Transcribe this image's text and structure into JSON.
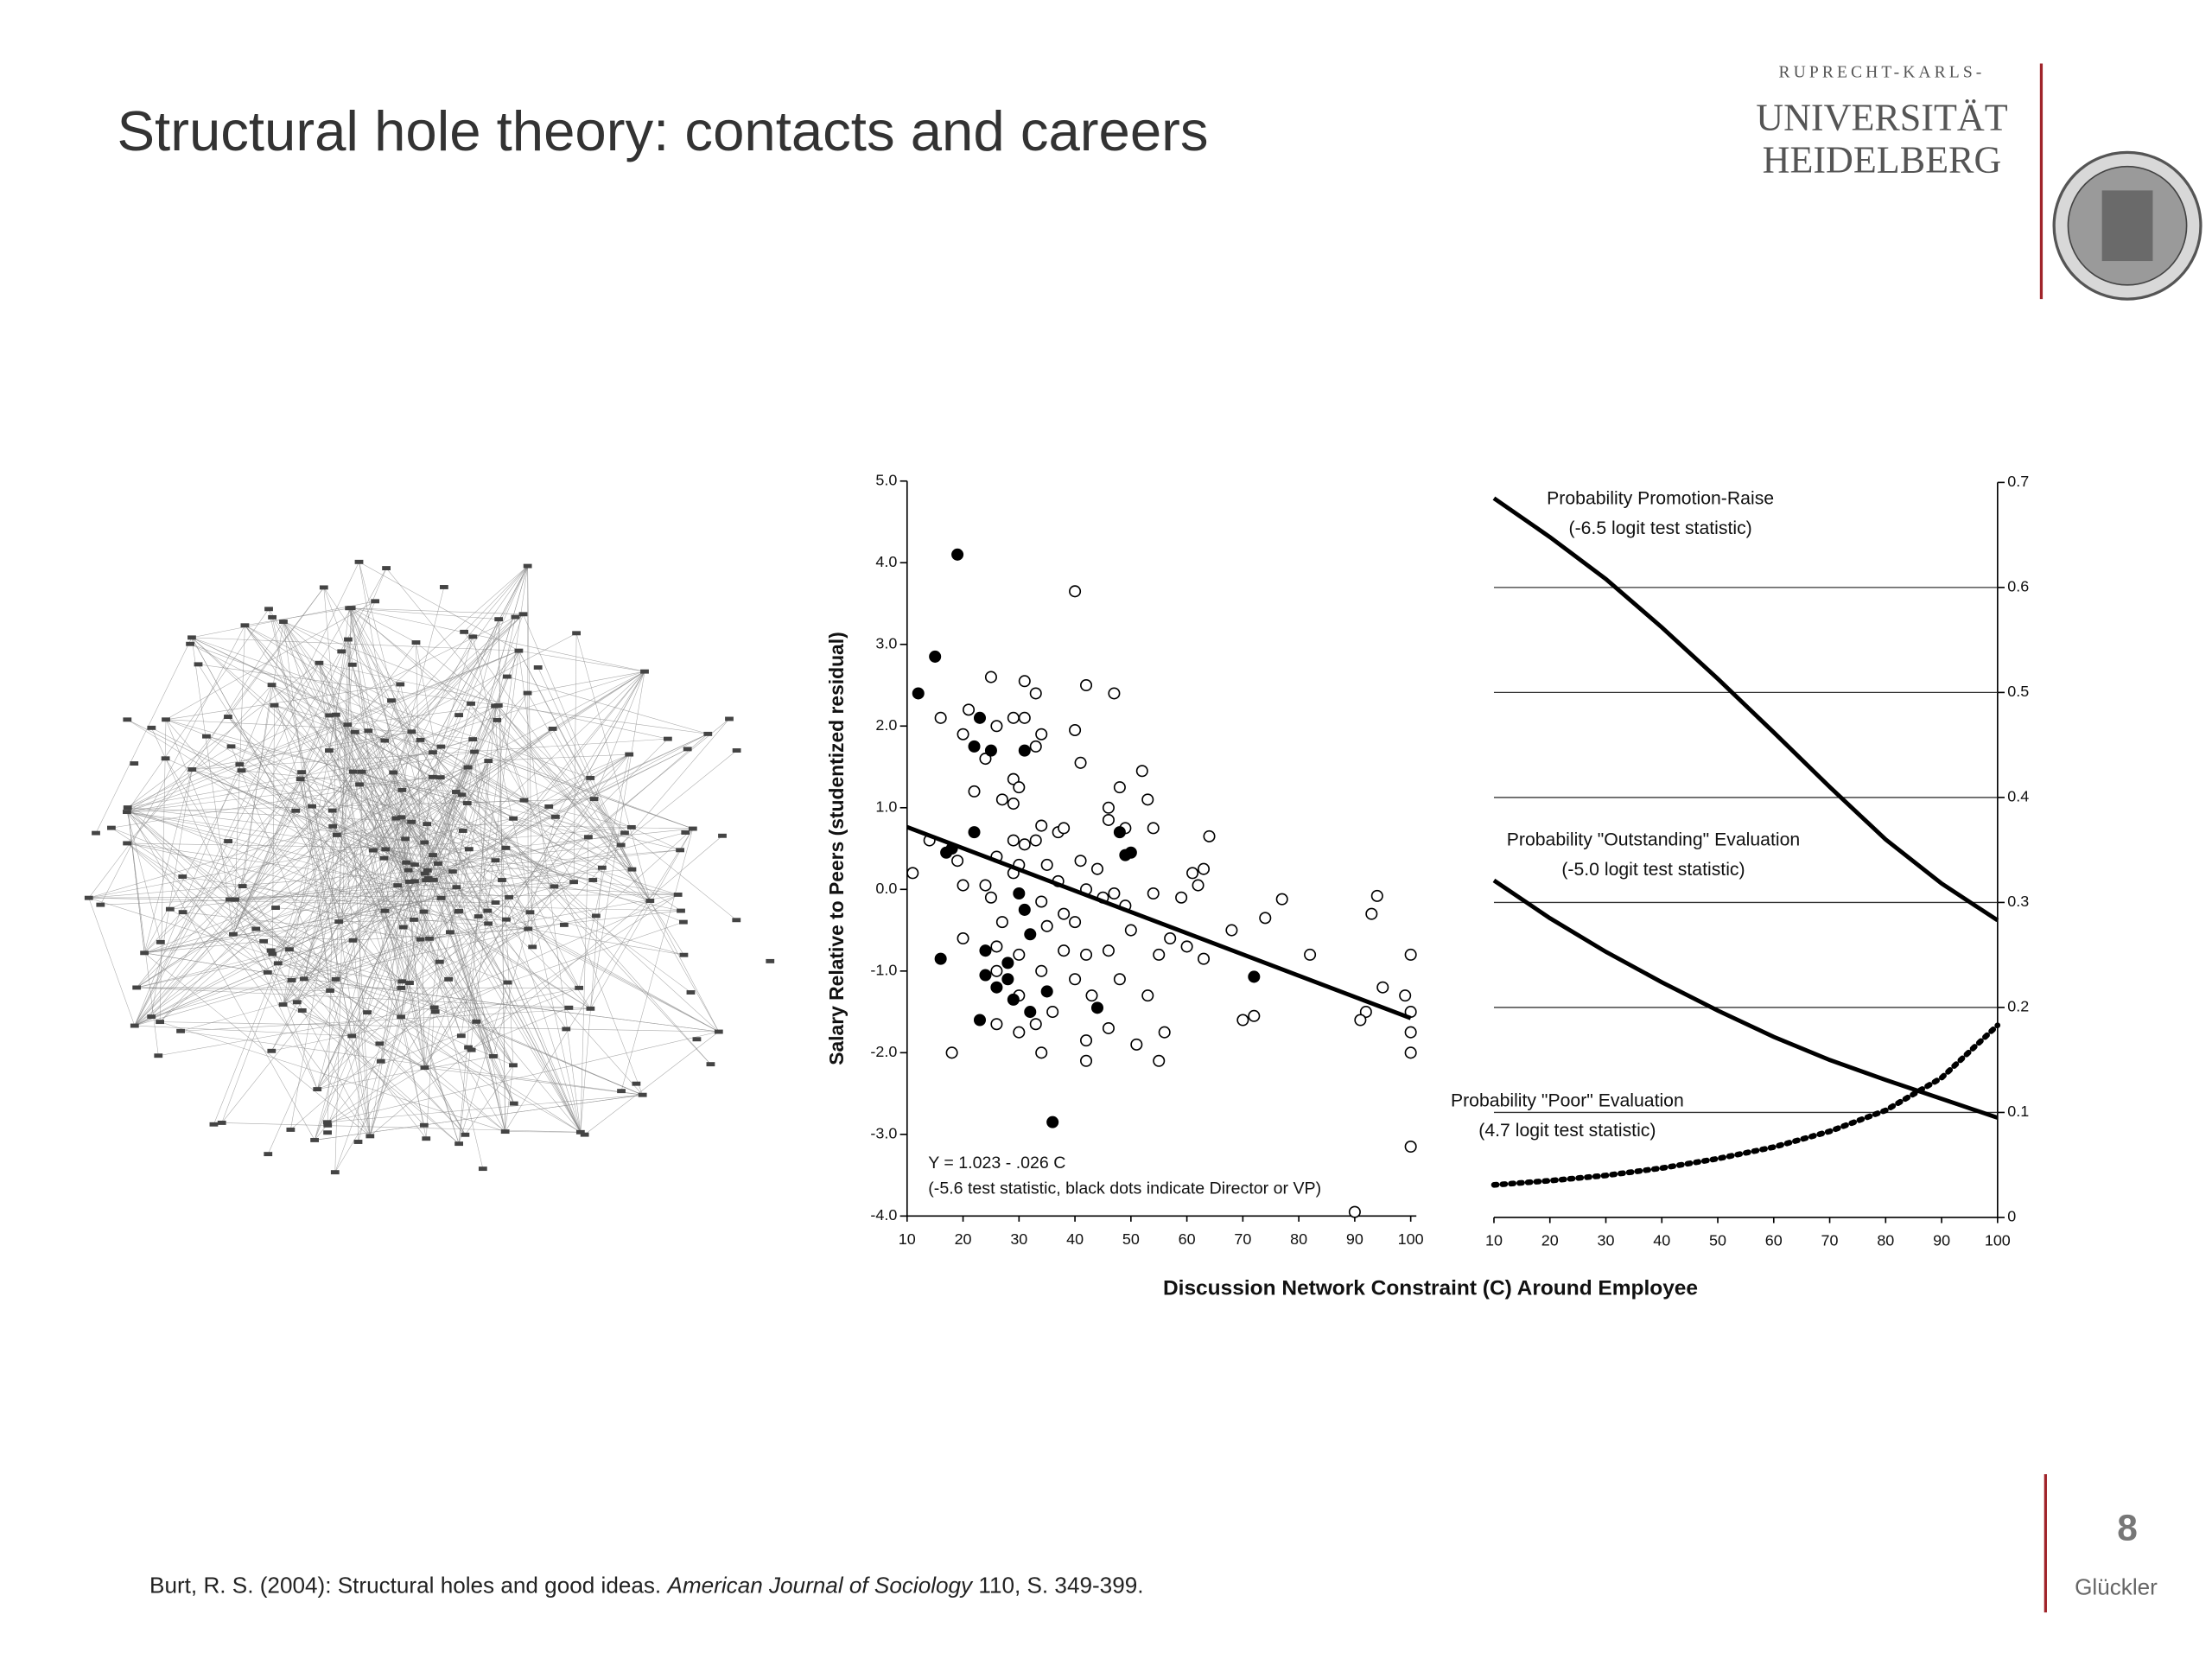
{
  "title": "Structural hole theory: contacts and careers",
  "logo": {
    "line1": "RUPRECHT-KARLS-",
    "line2": "UNIVERSITÄT",
    "line3": "HEIDELBERG"
  },
  "shared_x_label": "Discussion Network Constraint (C) Around Employee",
  "chart_data": [
    {
      "type": "scatter",
      "y_label": "Salary Relative to Peers (studentized residual)",
      "annotations": [
        "Y = 1.023 - .026 C",
        "(-5.6 test statistic, black dots indicate Director or VP)"
      ],
      "xlim": [
        10,
        100
      ],
      "xticks": [
        10,
        20,
        30,
        40,
        50,
        60,
        70,
        80,
        90,
        100
      ],
      "ylim": [
        -4,
        5
      ],
      "yticks": [
        {
          "value": 5,
          "label": "5.0"
        },
        {
          "value": 4,
          "label": "4.0"
        },
        {
          "value": 3,
          "label": "3.0"
        },
        {
          "value": 2,
          "label": "2.0"
        },
        {
          "value": 1,
          "label": "1.0"
        },
        {
          "value": 0,
          "label": "0.0"
        },
        {
          "value": -1,
          "label": "-1.0"
        },
        {
          "value": -2,
          "label": "-2.0"
        },
        {
          "value": -3,
          "label": "-3.0"
        },
        {
          "value": -4,
          "label": "-4.0"
        }
      ],
      "series": [
        {
          "marker": "open",
          "color": "#000",
          "x": [
            40,
            25,
            31,
            33,
            42,
            47,
            21,
            16,
            26,
            29,
            31,
            34,
            40,
            20,
            24,
            33,
            41,
            29,
            30,
            27,
            22,
            52,
            48,
            53,
            29,
            46,
            46,
            34,
            37,
            38,
            54,
            49,
            64,
            29,
            31,
            33,
            14,
            19,
            26,
            30,
            35,
            41,
            44,
            61,
            63,
            11,
            20,
            24,
            29,
            37,
            42,
            47,
            54,
            59,
            62,
            77,
            94,
            25,
            34,
            38,
            45,
            49,
            27,
            35,
            40,
            50,
            57,
            60,
            68,
            74,
            93,
            20,
            26,
            30,
            38,
            42,
            46,
            55,
            63,
            82,
            100,
            26,
            34,
            40,
            48,
            53,
            30,
            36,
            43,
            46,
            56,
            72,
            70,
            95,
            99,
            100,
            92,
            91,
            100,
            26,
            30,
            33,
            42,
            51,
            55,
            42,
            18,
            34,
            100,
            100,
            90
          ],
          "values": [
            3.65,
            2.6,
            2.55,
            2.4,
            2.5,
            2.4,
            2.2,
            2.1,
            2.0,
            2.1,
            2.1,
            1.9,
            1.95,
            1.9,
            1.6,
            1.75,
            1.55,
            1.35,
            1.25,
            1.1,
            1.2,
            1.45,
            1.25,
            1.1,
            1.05,
            1.0,
            0.85,
            0.78,
            0.7,
            0.75,
            0.75,
            0.75,
            0.65,
            0.6,
            0.55,
            0.6,
            0.6,
            0.35,
            0.4,
            0.3,
            0.3,
            0.35,
            0.25,
            0.2,
            0.25,
            0.2,
            0.05,
            0.05,
            0.2,
            0.1,
            0.0,
            -0.05,
            -0.05,
            -0.1,
            0.05,
            -0.12,
            -0.08,
            -0.1,
            -0.15,
            -0.3,
            -0.1,
            -0.2,
            -0.4,
            -0.45,
            -0.4,
            -0.5,
            -0.6,
            -0.7,
            -0.5,
            -0.35,
            -0.3,
            -0.6,
            -0.7,
            -0.8,
            -0.75,
            -0.8,
            -0.75,
            -0.8,
            -0.85,
            -0.8,
            -0.8,
            -1.0,
            -1.0,
            -1.1,
            -1.1,
            -1.3,
            -1.3,
            -1.5,
            -1.3,
            -1.7,
            -1.75,
            -1.55,
            -1.6,
            -1.2,
            -1.3,
            -1.5,
            -1.5,
            -1.6,
            -1.75,
            -1.65,
            -1.75,
            -1.65,
            -1.85,
            -1.9,
            -2.1,
            -2.1,
            -2.0,
            -2.0,
            -2.0,
            -3.15,
            -3.95
          ]
        },
        {
          "marker": "filled",
          "color": "#000",
          "x": [
            19,
            15,
            12,
            23,
            25,
            22,
            31,
            22,
            17,
            48,
            50,
            49,
            16,
            30,
            31,
            32,
            24,
            28,
            28,
            24,
            26,
            29,
            35,
            44,
            23,
            32,
            36,
            72,
            18
          ],
          "values": [
            4.1,
            2.85,
            2.4,
            2.1,
            1.7,
            1.75,
            1.7,
            0.7,
            0.45,
            0.7,
            0.45,
            0.42,
            -0.85,
            -0.05,
            -0.25,
            -0.55,
            -0.75,
            -0.9,
            -1.1,
            -1.05,
            -1.2,
            -1.35,
            -1.25,
            -1.45,
            -1.6,
            -1.5,
            -2.85,
            -1.07,
            0.5
          ]
        }
      ],
      "fit": {
        "x": [
          10,
          100
        ],
        "values": [
          0.763,
          -1.577
        ]
      }
    },
    {
      "type": "line",
      "axis_side": "right",
      "xlim": [
        10,
        100
      ],
      "xticks": [
        10,
        20,
        30,
        40,
        50,
        60,
        70,
        80,
        90,
        100
      ],
      "y2lim": [
        0,
        0.7
      ],
      "y2ticks": [
        0,
        0.1,
        0.2,
        0.3,
        0.4,
        0.5,
        0.6,
        0.7
      ],
      "grid": true,
      "x": [
        10,
        20,
        30,
        40,
        50,
        60,
        70,
        80,
        90,
        100
      ],
      "series": [
        {
          "name": "Probability Promotion-Raise",
          "note": "(-6.5 logit test statistic)",
          "color": "#000",
          "style": "solid",
          "axis": "y2",
          "values": [
            0.685,
            0.648,
            0.608,
            0.562,
            0.513,
            0.462,
            0.41,
            0.36,
            0.318,
            0.283
          ]
        },
        {
          "name": "Probability \"Outstanding\" Evaluation",
          "note": "(-5.0 logit test statistic)",
          "color": "#000",
          "style": "solid",
          "axis": "y2",
          "values": [
            0.321,
            0.285,
            0.253,
            0.224,
            0.197,
            0.172,
            0.15,
            0.131,
            0.113,
            0.095
          ]
        },
        {
          "name": "Probability \"Poor\" Evaluation",
          "note": "(4.7 logit test statistic)",
          "color": "#000",
          "style": "dotted",
          "axis": "y2",
          "values": [
            0.031,
            0.035,
            0.04,
            0.047,
            0.056,
            0.067,
            0.082,
            0.102,
            0.133,
            0.183
          ]
        }
      ]
    }
  ],
  "footer": {
    "citation_start": "Burt, R. S. (2004): Structural holes and good ideas. ",
    "journal": "American Journal of Sociology",
    "citation_end": " 110, S. 349-399.",
    "page": "8",
    "author": "Glückler"
  }
}
